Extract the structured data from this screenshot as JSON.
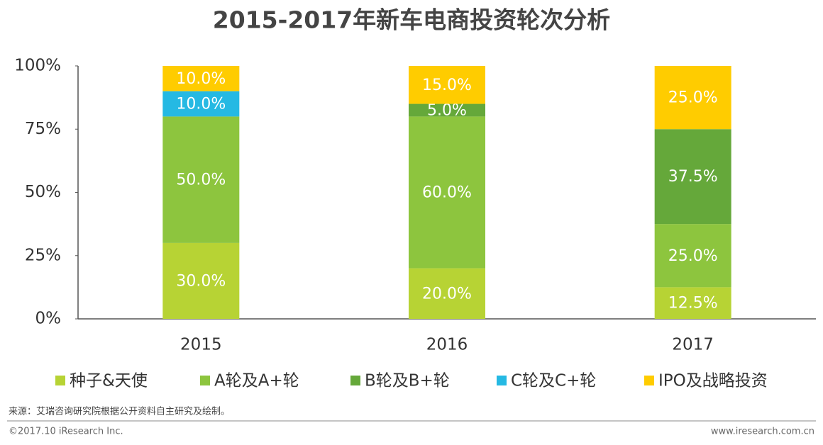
{
  "chart_data": {
    "type": "stacked_bar",
    "title": "2015-2017年新车电商投资轮次分析",
    "categories": [
      "2015",
      "2016",
      "2017"
    ],
    "series": [
      {
        "name": "种子&天使",
        "color": "#b7d334",
        "values": [
          30,
          20,
          12.5
        ],
        "value_labels": [
          "30.0%",
          "20.0%",
          "12.5%"
        ]
      },
      {
        "name": "A轮及A+轮",
        "color": "#8dc53e",
        "values": [
          50,
          60,
          25
        ],
        "value_labels": [
          "50.0%",
          "60.0%",
          "25.0%"
        ]
      },
      {
        "name": "B轮及B+轮",
        "color": "#65a83a",
        "values": [
          null,
          5,
          37.5
        ],
        "value_labels": [
          null,
          "5.0%",
          "37.5%"
        ]
      },
      {
        "name": "C轮及C+轮",
        "color": "#25b9e3",
        "values": [
          10,
          null,
          null
        ],
        "value_labels": [
          "10.0%",
          null,
          null
        ]
      },
      {
        "name": "IPO及战略投资",
        "color": "#ffcc00",
        "values": [
          10,
          15,
          25
        ],
        "value_labels": [
          "10.0%",
          "15.0%",
          "25.0%"
        ]
      }
    ],
    "ylim": [
      0,
      100
    ],
    "yticks": [
      {
        "value": 0,
        "label": "0%"
      },
      {
        "value": 25,
        "label": "25%"
      },
      {
        "value": 50,
        "label": "50%"
      },
      {
        "value": 75,
        "label": "75%"
      },
      {
        "value": 100,
        "label": "100%"
      }
    ],
    "grid": false,
    "legend": "bottom",
    "source": "来源：艾瑞咨询研究院根据公开资料自主研究及绘制。",
    "copyright": "©2017.10 iResearch Inc.",
    "website": "www.iresearch.com.cn"
  }
}
